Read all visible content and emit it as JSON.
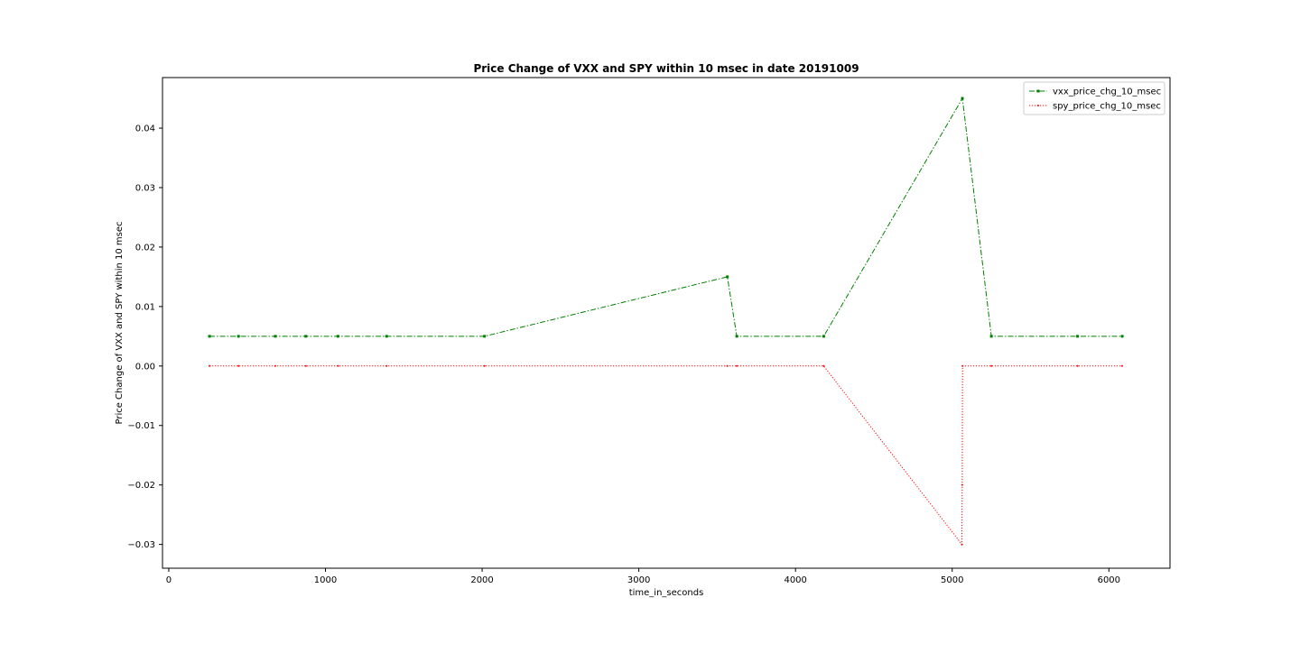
{
  "chart_data": {
    "type": "line",
    "title": "Price Change of VXX and SPY within 10 msec in date  20191009",
    "xlabel": "time_in_seconds",
    "ylabel": "Price Change of VXX and SPY within 10 msec",
    "xlim": [
      -40,
      6390
    ],
    "ylim": [
      -0.034,
      0.0485
    ],
    "xticks": [
      0,
      1000,
      2000,
      3000,
      4000,
      5000,
      6000
    ],
    "xtick_labels": [
      "0",
      "1000",
      "2000",
      "3000",
      "4000",
      "5000",
      "6000"
    ],
    "yticks": [
      -0.03,
      -0.02,
      -0.01,
      0.0,
      0.01,
      0.02,
      0.03,
      0.04
    ],
    "ytick_labels": [
      "−0.03",
      "−0.02",
      "−0.01",
      "0.00",
      "0.01",
      "0.02",
      "0.03",
      "0.04"
    ],
    "grid": false,
    "legend_position": "top-right",
    "series": [
      {
        "name": "vxx_price_chg_10_msec",
        "color": "#008000",
        "line_style": "dashdot",
        "marker": "square",
        "x": [
          260,
          445,
          680,
          875,
          1080,
          1390,
          2015,
          3565,
          3625,
          4180,
          5065,
          5250,
          5800,
          6085
        ],
        "y": [
          0.005,
          0.005,
          0.005,
          0.005,
          0.005,
          0.005,
          0.005,
          0.015,
          0.005,
          0.005,
          0.045,
          0.005,
          0.005,
          0.005
        ]
      },
      {
        "name": "spy_price_chg_10_msec",
        "color": "#ff0000",
        "line_style": "dotted",
        "marker": "point",
        "x": [
          260,
          445,
          680,
          875,
          1080,
          1390,
          2015,
          3565,
          3625,
          4180,
          5062,
          5064,
          5066,
          5250,
          5800,
          6085
        ],
        "y": [
          0.0,
          0.0,
          0.0,
          0.0,
          0.0,
          0.0,
          0.0,
          0.0,
          0.0,
          0.0,
          -0.03,
          -0.02,
          0.0,
          0.0,
          0.0,
          0.0
        ]
      }
    ]
  }
}
